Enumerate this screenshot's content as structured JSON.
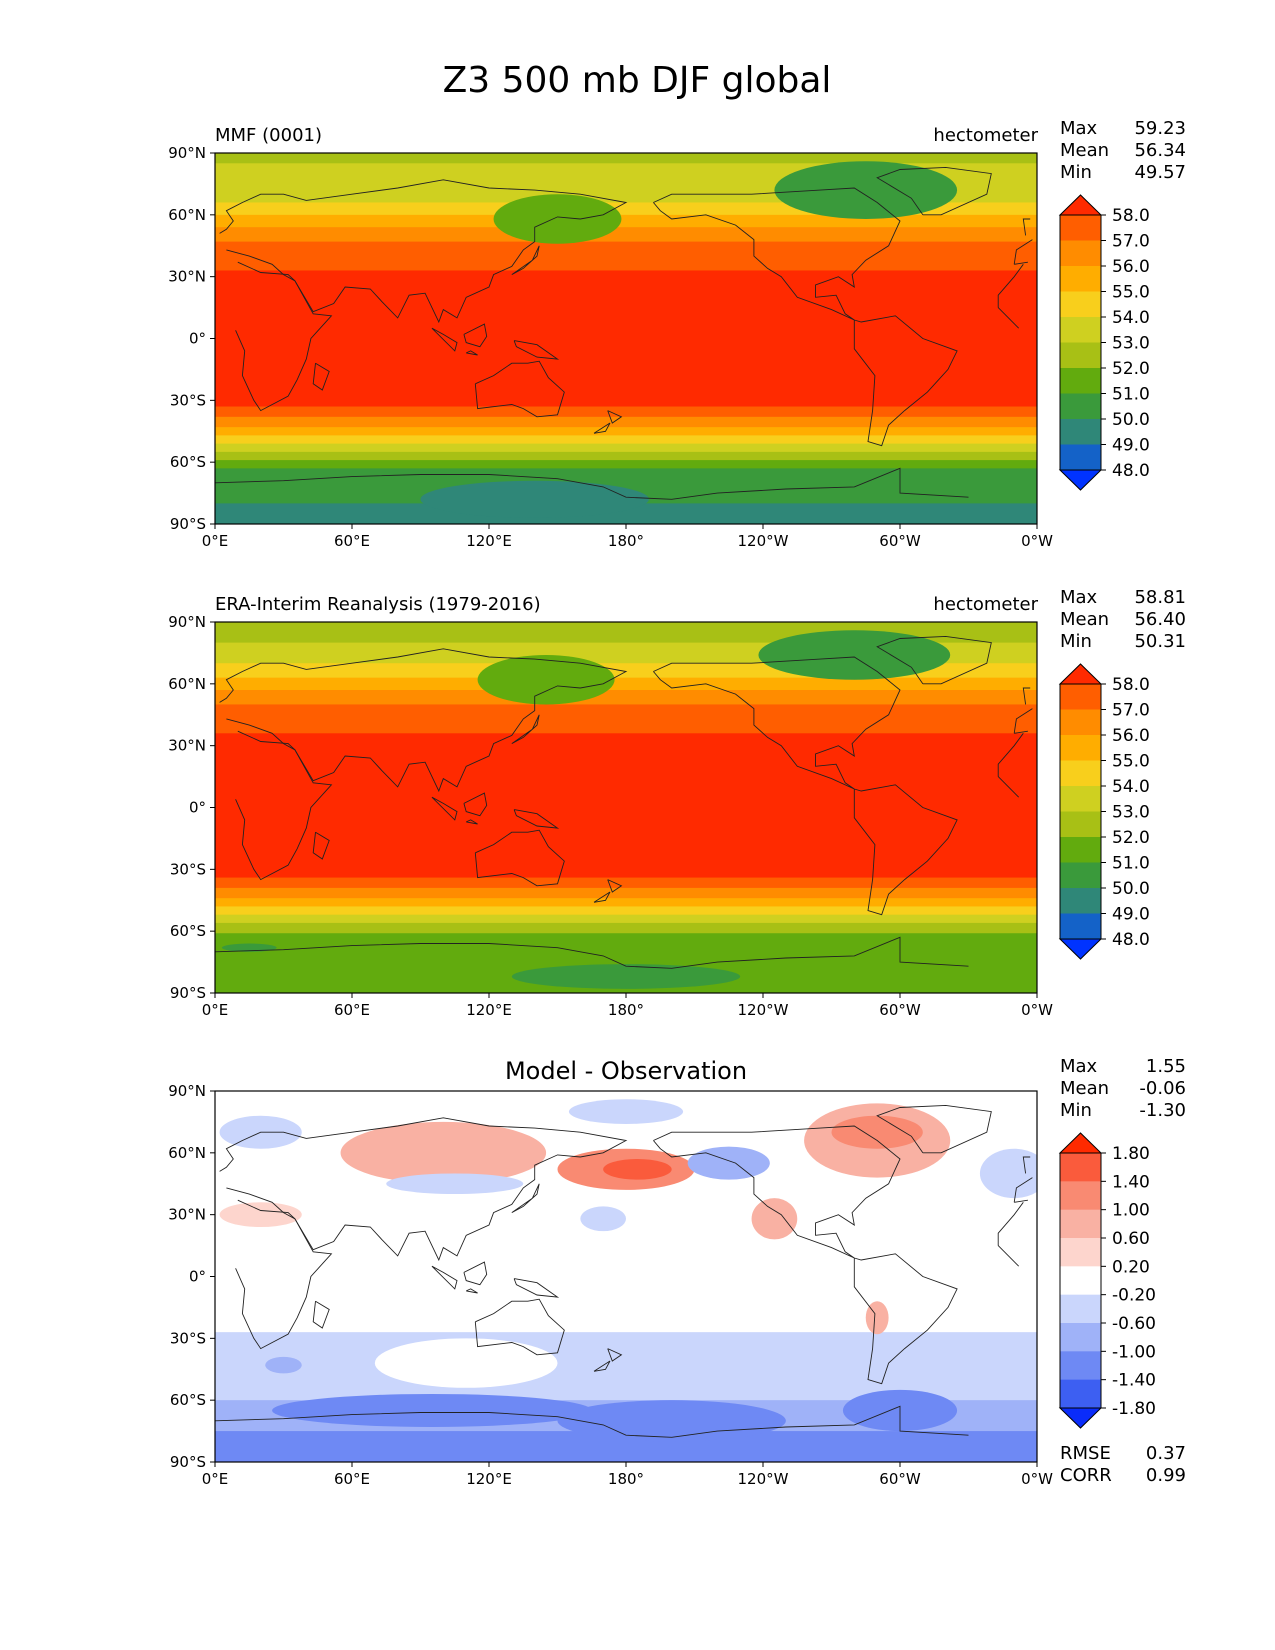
{
  "figure": {
    "title": "Z3 500 mb DJF global",
    "lat_ticks": [
      "90°N",
      "60°N",
      "30°N",
      "0°",
      "30°S",
      "60°S",
      "90°S"
    ],
    "lon_ticks": [
      "0°E",
      "60°E",
      "120°E",
      "180°",
      "120°W",
      "60°W",
      "0°W"
    ]
  },
  "chart_data": [
    {
      "type": "heatmap",
      "title": "MMF (0001)",
      "units": "hectometer",
      "stats": {
        "Max": "59.23",
        "Mean": "56.34",
        "Min": "49.57"
      },
      "colorbar_levels": [
        "58.0",
        "57.0",
        "56.0",
        "55.0",
        "54.0",
        "53.0",
        "52.0",
        "51.0",
        "50.0",
        "49.0",
        "48.0"
      ],
      "colors": [
        "#ff2a00",
        "#ff5e00",
        "#ff8c00",
        "#ffad00",
        "#f8cf1c",
        "#cfd020",
        "#a8c015",
        "#62ab0e",
        "#3a9a3b",
        "#2f8778",
        "#1462c8",
        "#0033ff",
        "#ff2a00"
      ],
      "lat_bands": [
        {
          "s": 90,
          "n": 85,
          "level": 6
        },
        {
          "s": 85,
          "n": 75,
          "level": 5
        },
        {
          "s": 75,
          "n": 66,
          "level": 5
        },
        {
          "s": 66,
          "n": 60,
          "level": 4
        },
        {
          "s": 60,
          "n": 54,
          "level": 3
        },
        {
          "s": 54,
          "n": 47,
          "level": 2
        },
        {
          "s": 47,
          "n": 40,
          "level": 1
        },
        {
          "s": 40,
          "n": 33,
          "level": 1
        },
        {
          "s": 33,
          "n": 27,
          "level": 0
        },
        {
          "s": 27,
          "n": 22,
          "level": 0
        },
        {
          "s": 22,
          "n": -27,
          "level": 0
        },
        {
          "s": -27,
          "n": -33,
          "level": 0
        },
        {
          "s": -33,
          "n": -38,
          "level": 1
        },
        {
          "s": -38,
          "n": -43,
          "level": 2
        },
        {
          "s": -43,
          "n": -47,
          "level": 3
        },
        {
          "s": -47,
          "n": -51,
          "level": 4
        },
        {
          "s": -51,
          "n": -55,
          "level": 5
        },
        {
          "s": -55,
          "n": -59,
          "level": 6
        },
        {
          "s": -59,
          "n": -63,
          "level": 7
        },
        {
          "s": -63,
          "n": -80,
          "level": 8
        },
        {
          "s": -80,
          "n": -90,
          "level": 9
        }
      ],
      "blobs": [
        {
          "lon": 150,
          "lat": 58,
          "rx": 28,
          "ry": 12,
          "level": 7
        },
        {
          "lon": 285,
          "lat": 72,
          "rx": 40,
          "ry": 14,
          "level": 8
        },
        {
          "lon": 140,
          "lat": -78,
          "rx": 50,
          "ry": 9,
          "level": 9
        }
      ]
    },
    {
      "type": "heatmap",
      "title": "ERA-Interim Reanalysis (1979-2016)",
      "units": "hectometer",
      "stats": {
        "Max": "58.81",
        "Mean": "56.40",
        "Min": "50.31"
      },
      "colorbar_levels": [
        "58.0",
        "57.0",
        "56.0",
        "55.0",
        "54.0",
        "53.0",
        "52.0",
        "51.0",
        "50.0",
        "49.0",
        "48.0"
      ],
      "colors": [
        "#ff2a00",
        "#ff5e00",
        "#ff8c00",
        "#ffad00",
        "#f8cf1c",
        "#cfd020",
        "#a8c015",
        "#62ab0e",
        "#3a9a3b",
        "#2f8778",
        "#1462c8",
        "#0033ff",
        "#ff2a00"
      ],
      "lat_bands": [
        {
          "s": 90,
          "n": 80,
          "level": 6
        },
        {
          "s": 80,
          "n": 70,
          "level": 5
        },
        {
          "s": 70,
          "n": 63,
          "level": 4
        },
        {
          "s": 63,
          "n": 57,
          "level": 3
        },
        {
          "s": 57,
          "n": 50,
          "level": 2
        },
        {
          "s": 50,
          "n": 44,
          "level": 1
        },
        {
          "s": 44,
          "n": 36,
          "level": 1
        },
        {
          "s": 36,
          "n": 28,
          "level": 0
        },
        {
          "s": 28,
          "n": 22,
          "level": 0
        },
        {
          "s": 22,
          "n": -28,
          "level": 0
        },
        {
          "s": -28,
          "n": -34,
          "level": 0
        },
        {
          "s": -34,
          "n": -39,
          "level": 1
        },
        {
          "s": -39,
          "n": -44,
          "level": 2
        },
        {
          "s": -44,
          "n": -48,
          "level": 3
        },
        {
          "s": -48,
          "n": -52,
          "level": 4
        },
        {
          "s": -52,
          "n": -56,
          "level": 5
        },
        {
          "s": -56,
          "n": -61,
          "level": 6
        },
        {
          "s": -61,
          "n": -90,
          "level": 7
        }
      ],
      "blobs": [
        {
          "lon": 145,
          "lat": 62,
          "rx": 30,
          "ry": 12,
          "level": 7
        },
        {
          "lon": 280,
          "lat": 74,
          "rx": 42,
          "ry": 12,
          "level": 8
        },
        {
          "lon": 180,
          "lat": -82,
          "rx": 50,
          "ry": 6,
          "level": 8
        },
        {
          "lon": 15,
          "lat": -68,
          "rx": 12,
          "ry": 2,
          "level": 8
        }
      ]
    },
    {
      "type": "heatmap",
      "title": "Model - Observation",
      "units": "",
      "stats": {
        "Max": "1.55",
        "Mean": "-0.06",
        "Min": "-1.30"
      },
      "colorbar_levels": [
        "1.80",
        "1.40",
        "1.00",
        "0.60",
        "0.20",
        "-0.20",
        "-0.60",
        "-1.00",
        "-1.40",
        "-1.80"
      ],
      "colors": [
        "#ff2a00",
        "#fa5b3c",
        "#f98a72",
        "#f9b1a3",
        "#fdd5cd",
        "#ffffff",
        "#cad6fc",
        "#9fb2f8",
        "#6e89f4",
        "#3d5ff2",
        "#0a2cfa",
        "#0a2cfa",
        "#ff2a00"
      ],
      "rmse": "0.37",
      "corr": "0.99",
      "lat_bands": [
        {
          "s": -27,
          "n": -45,
          "level": 6
        },
        {
          "s": -45,
          "n": -60,
          "level": 6
        },
        {
          "s": -60,
          "n": -75,
          "level": 7
        },
        {
          "s": -75,
          "n": -90,
          "level": 8
        }
      ],
      "blobs": [
        {
          "lon": 100,
          "lat": 60,
          "rx": 45,
          "ry": 15,
          "level": 3
        },
        {
          "lon": 180,
          "lat": 52,
          "rx": 30,
          "ry": 10,
          "level": 2
        },
        {
          "lon": 185,
          "lat": 52,
          "rx": 15,
          "ry": 5,
          "level": 1
        },
        {
          "lon": 290,
          "lat": 66,
          "rx": 32,
          "ry": 18,
          "level": 3
        },
        {
          "lon": 290,
          "lat": 70,
          "rx": 20,
          "ry": 8,
          "level": 2
        },
        {
          "lon": 245,
          "lat": 28,
          "rx": 10,
          "ry": 10,
          "level": 3
        },
        {
          "lon": 290,
          "lat": -20,
          "rx": 5,
          "ry": 8,
          "level": 3
        },
        {
          "lon": 20,
          "lat": 30,
          "rx": 18,
          "ry": 6,
          "level": 4
        },
        {
          "lon": 180,
          "lat": 80,
          "rx": 25,
          "ry": 6,
          "level": 6
        },
        {
          "lon": 225,
          "lat": 55,
          "rx": 18,
          "ry": 8,
          "level": 7
        },
        {
          "lon": 350,
          "lat": 50,
          "rx": 15,
          "ry": 12,
          "level": 6
        },
        {
          "lon": 20,
          "lat": 70,
          "rx": 18,
          "ry": 8,
          "level": 6
        },
        {
          "lon": 170,
          "lat": 28,
          "rx": 10,
          "ry": 6,
          "level": 6
        },
        {
          "lon": 105,
          "lat": 45,
          "rx": 30,
          "ry": 5,
          "level": 6
        },
        {
          "lon": 95,
          "lat": -65,
          "rx": 70,
          "ry": 8,
          "level": 8
        },
        {
          "lon": 200,
          "lat": -70,
          "rx": 50,
          "ry": 10,
          "level": 8
        },
        {
          "lon": 300,
          "lat": -65,
          "rx": 25,
          "ry": 10,
          "level": 8
        },
        {
          "lon": 30,
          "lat": -43,
          "rx": 8,
          "ry": 4,
          "level": 7
        }
      ],
      "mask_white": {
        "lon": 110,
        "lat": -42,
        "rx": 40,
        "ry": 12
      }
    }
  ]
}
